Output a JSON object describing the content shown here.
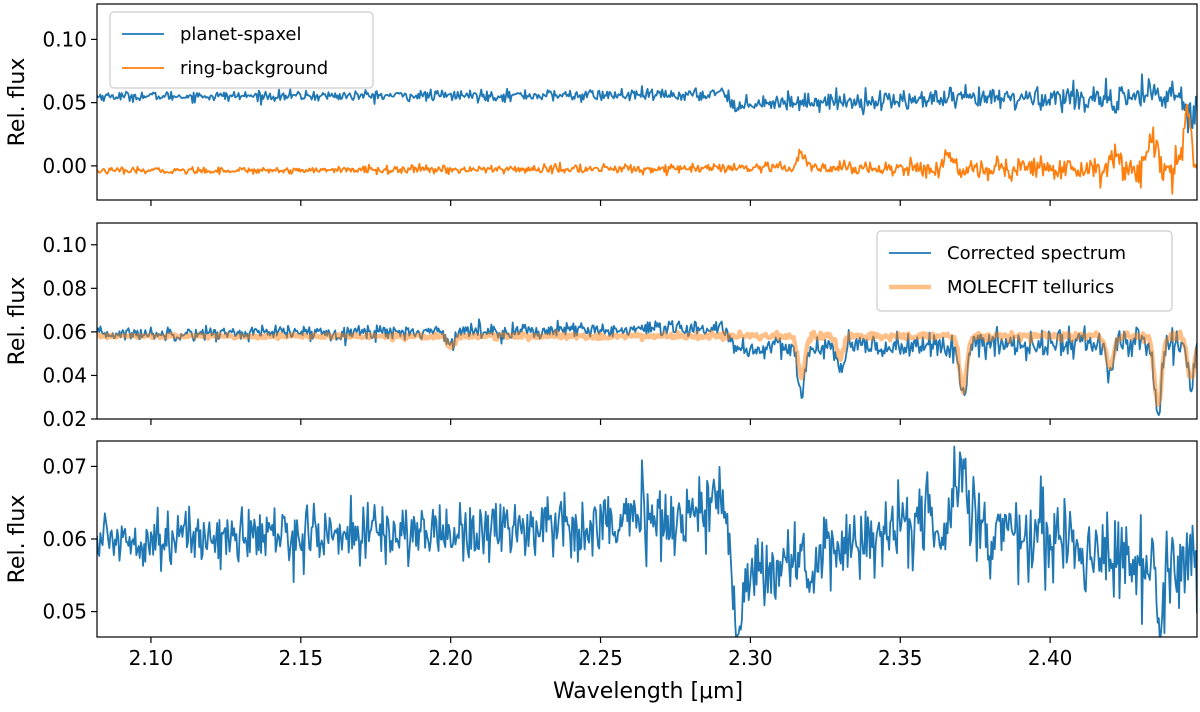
{
  "figure": {
    "xlabel": "Wavelength [μm]"
  },
  "chart_data": [
    {
      "type": "line",
      "ylabel": "Rel. flux",
      "xlim": [
        2.082,
        2.449
      ],
      "ylim": [
        -0.027,
        0.128
      ],
      "xticks": [
        2.1,
        2.15,
        2.2,
        2.25,
        2.3,
        2.35,
        2.4
      ],
      "yticks": [
        0.0,
        0.05,
        0.1
      ],
      "ytick_labels": [
        "0.00",
        "0.05",
        "0.10"
      ],
      "show_xtick_labels": false,
      "grid": false,
      "legend": "top-left",
      "series": [
        {
          "name": "planet-spaxel",
          "color": "#1f77b4",
          "width": 1.8,
          "base": 0.055,
          "trend": [
            [
              2.082,
              0.055
            ],
            [
              2.285,
              0.056
            ],
            [
              2.29,
              0.06
            ],
            [
              2.295,
              0.05
            ],
            [
              2.33,
              0.051
            ],
            [
              2.449,
              0.056
            ]
          ],
          "noise": [
            [
              2.082,
              0.0018
            ],
            [
              2.28,
              0.0025
            ],
            [
              2.4,
              0.005
            ],
            [
              2.449,
              0.008
            ]
          ],
          "dips": [
            [
              2.296,
              0.006
            ],
            [
              2.421,
              0.015
            ],
            [
              2.447,
              0.02
            ]
          ]
        },
        {
          "name": "ring-background",
          "color": "#ff7f0e",
          "width": 1.8,
          "base": -0.004,
          "trend": [
            [
              2.082,
              -0.004
            ],
            [
              2.3,
              -0.002
            ],
            [
              2.449,
              -0.002
            ]
          ],
          "noise": [
            [
              2.082,
              0.0012
            ],
            [
              2.3,
              0.002
            ],
            [
              2.37,
              0.004
            ],
            [
              2.449,
              0.008
            ]
          ],
          "spikes": [
            [
              2.317,
              0.012
            ],
            [
              2.366,
              0.01
            ],
            [
              2.422,
              0.015
            ],
            [
              2.434,
              0.03
            ],
            [
              2.446,
              0.04
            ]
          ]
        }
      ]
    },
    {
      "type": "line",
      "ylabel": "Rel. flux",
      "xlim": [
        2.082,
        2.449
      ],
      "ylim": [
        0.02,
        0.11
      ],
      "xticks": [
        2.1,
        2.15,
        2.2,
        2.25,
        2.3,
        2.35,
        2.4
      ],
      "yticks": [
        0.02,
        0.04,
        0.06,
        0.08,
        0.1
      ],
      "ytick_labels": [
        "0.02",
        "0.04",
        "0.06",
        "0.08",
        "0.10"
      ],
      "show_xtick_labels": false,
      "grid": false,
      "legend": "top-right",
      "series": [
        {
          "name": "Corrected spectrum",
          "color": "#1f77b4",
          "width": 1.8,
          "base": 0.059,
          "trend": [
            [
              2.082,
              0.059
            ],
            [
              2.285,
              0.061
            ],
            [
              2.29,
              0.064
            ],
            [
              2.295,
              0.052
            ],
            [
              2.449,
              0.056
            ]
          ],
          "noise": [
            [
              2.082,
              0.0015
            ],
            [
              2.28,
              0.002
            ],
            [
              2.449,
              0.004
            ]
          ],
          "dips": [
            [
              2.2,
              0.005
            ],
            [
              2.317,
              0.02
            ],
            [
              2.33,
              0.01
            ],
            [
              2.371,
              0.025
            ],
            [
              2.42,
              0.015
            ],
            [
              2.436,
              0.033
            ],
            [
              2.447,
              0.02
            ]
          ]
        },
        {
          "name": "MOLECFIT tellurics",
          "color": "#ff7f0e",
          "opacity": 0.5,
          "width": 4.5,
          "base": 0.058,
          "trend": [
            [
              2.082,
              0.058
            ],
            [
              2.449,
              0.058
            ]
          ],
          "noise": [
            [
              2.082,
              0.0004
            ],
            [
              2.449,
              0.001
            ]
          ],
          "dips": [
            [
              2.2,
              0.005
            ],
            [
              2.317,
              0.019
            ],
            [
              2.33,
              0.01
            ],
            [
              2.371,
              0.025
            ],
            [
              2.42,
              0.015
            ],
            [
              2.436,
              0.032
            ],
            [
              2.447,
              0.02
            ]
          ]
        }
      ]
    },
    {
      "type": "line",
      "ylabel": "Rel. flux",
      "xlim": [
        2.082,
        2.449
      ],
      "ylim": [
        0.0465,
        0.0735
      ],
      "xticks": [
        2.1,
        2.15,
        2.2,
        2.25,
        2.3,
        2.35,
        2.4
      ],
      "xtick_labels": [
        "2.10",
        "2.15",
        "2.20",
        "2.25",
        "2.30",
        "2.35",
        "2.40"
      ],
      "yticks": [
        0.05,
        0.06,
        0.07
      ],
      "ytick_labels": [
        "0.05",
        "0.06",
        "0.07"
      ],
      "show_xtick_labels": true,
      "grid": false,
      "legend": "none",
      "series": [
        {
          "name": "",
          "color": "#1f77b4",
          "width": 1.8,
          "base": 0.06,
          "trend": [
            [
              2.082,
              0.06
            ],
            [
              2.2,
              0.061
            ],
            [
              2.28,
              0.063
            ],
            [
              2.29,
              0.066
            ],
            [
              2.295,
              0.055
            ],
            [
              2.33,
              0.059
            ],
            [
              2.37,
              0.064
            ],
            [
              2.4,
              0.06
            ],
            [
              2.449,
              0.055
            ]
          ],
          "noise": [
            [
              2.082,
              0.0018
            ],
            [
              2.3,
              0.0025
            ],
            [
              2.449,
              0.003
            ]
          ],
          "dips": [
            [
              2.296,
              0.008
            ],
            [
              2.321,
              0.005
            ],
            [
              2.38,
              0.006
            ],
            [
              2.437,
              0.007
            ]
          ],
          "spikes": [
            [
              2.371,
              0.007
            ]
          ]
        }
      ]
    }
  ]
}
